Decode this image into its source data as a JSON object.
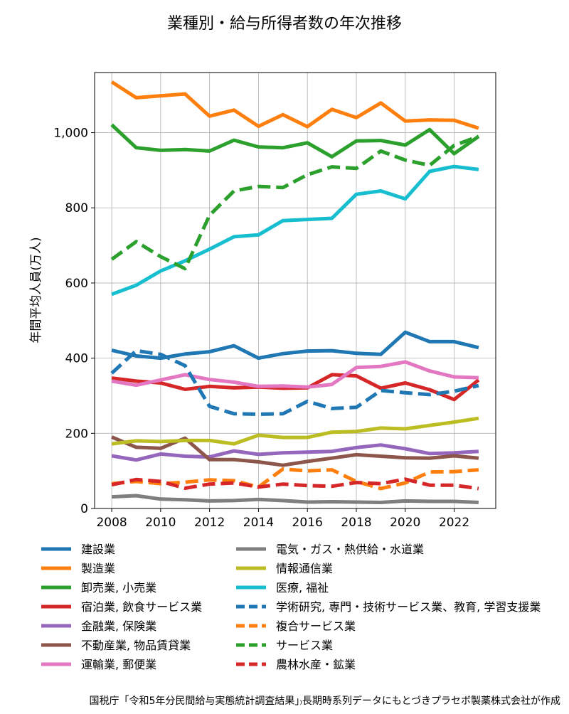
{
  "chart_data": {
    "type": "line",
    "title": "業種別・給与所得者数の年次推移",
    "xlabel": "",
    "ylabel": "年間平均人員(万人)",
    "xlim": [
      2007.3,
      2023.7
    ],
    "ylim": [
      0,
      1160
    ],
    "x_ticks": [
      2008,
      2010,
      2012,
      2014,
      2016,
      2018,
      2020,
      2022
    ],
    "x_tick_labels": [
      "2008",
      "2010",
      "2012",
      "2014",
      "2016",
      "2018",
      "2020",
      "2022"
    ],
    "y_ticks": [
      0,
      200,
      400,
      600,
      800,
      1000
    ],
    "y_tick_labels": [
      "0",
      "200",
      "400",
      "600",
      "800",
      "1,000"
    ],
    "grid": true,
    "legend_position": "bottom",
    "x": [
      2008,
      2009,
      2010,
      2011,
      2012,
      2013,
      2014,
      2015,
      2016,
      2017,
      2018,
      2019,
      2020,
      2021,
      2022,
      2023
    ],
    "series": [
      {
        "name": "建設業",
        "color": "#1f77b4",
        "style": "solid",
        "values": [
          421,
          406,
          400,
          411,
          417,
          433,
          400,
          412,
          419,
          420,
          413,
          410,
          469,
          444,
          444,
          428
        ]
      },
      {
        "name": "製造業",
        "color": "#ff7f0e",
        "style": "solid",
        "values": [
          1135,
          1093,
          1098,
          1103,
          1044,
          1060,
          1017,
          1048,
          1016,
          1062,
          1040,
          1079,
          1031,
          1034,
          1033,
          1012
        ]
      },
      {
        "name": "卸売業, 小売業",
        "color": "#2ca02c",
        "style": "solid",
        "values": [
          1021,
          960,
          953,
          955,
          951,
          980,
          962,
          960,
          973,
          936,
          978,
          979,
          967,
          1008,
          944,
          990
        ]
      },
      {
        "name": "宿泊業, 飲食サービス業",
        "color": "#d62728",
        "style": "solid",
        "values": [
          347,
          339,
          334,
          317,
          325,
          321,
          323,
          320,
          321,
          356,
          353,
          320,
          334,
          316,
          290,
          342
        ]
      },
      {
        "name": "金融業, 保険業",
        "color": "#9467bd",
        "style": "solid",
        "values": [
          140,
          129,
          145,
          139,
          137,
          153,
          144,
          148,
          150,
          152,
          162,
          169,
          159,
          146,
          148,
          152
        ]
      },
      {
        "name": "不動産業, 物品賃貸業",
        "color": "#8c564b",
        "style": "solid",
        "values": [
          190,
          163,
          160,
          187,
          130,
          130,
          124,
          115,
          125,
          134,
          143,
          139,
          135,
          134,
          140,
          134
        ]
      },
      {
        "name": "運輸業, 郵便業",
        "color": "#e377c2",
        "style": "solid",
        "values": [
          339,
          328,
          342,
          356,
          343,
          336,
          325,
          326,
          323,
          330,
          375,
          378,
          390,
          366,
          350,
          348
        ]
      },
      {
        "name": "電気・ガス・熱供給・水道業",
        "color": "#7f7f7f",
        "style": "solid",
        "values": [
          31,
          34,
          25,
          23,
          20,
          21,
          24,
          21,
          17,
          18,
          17,
          16,
          20,
          19,
          19,
          16
        ]
      },
      {
        "name": "情報通信業",
        "color": "#bcbd22",
        "style": "solid",
        "values": [
          172,
          180,
          178,
          181,
          181,
          172,
          195,
          189,
          189,
          203,
          205,
          214,
          212,
          221,
          230,
          240
        ]
      },
      {
        "name": "医療, 福祉",
        "color": "#17becf",
        "style": "solid",
        "values": [
          570,
          594,
          632,
          659,
          690,
          723,
          728,
          766,
          769,
          772,
          836,
          845,
          824,
          897,
          910,
          902
        ]
      },
      {
        "name": "学術研究, 専門・技術サービス業、教育, 学習支援業",
        "color": "#1f77b4",
        "style": "dashed",
        "values": [
          360,
          420,
          410,
          380,
          272,
          252,
          251,
          252,
          285,
          266,
          269,
          314,
          308,
          303,
          312,
          327
        ]
      },
      {
        "name": "複合サービス業",
        "color": "#ff7f0e",
        "style": "dashed",
        "values": [
          66,
          72,
          66,
          70,
          76,
          74,
          57,
          105,
          100,
          103,
          72,
          53,
          68,
          97,
          98,
          103
        ]
      },
      {
        "name": "サービス業",
        "color": "#2ca02c",
        "style": "dashed",
        "values": [
          663,
          710,
          670,
          638,
          780,
          845,
          857,
          854,
          888,
          909,
          905,
          951,
          927,
          913,
          966,
          990
        ]
      },
      {
        "name": "農林水産・鉱業",
        "color": "#d62728",
        "style": "dashed",
        "values": [
          63,
          77,
          72,
          54,
          65,
          68,
          57,
          65,
          61,
          59,
          69,
          66,
          78,
          62,
          62,
          53
        ]
      }
    ]
  },
  "source_note": "国税庁「令和5年分民間給与実態統計調査結果」₎長期時系列データにもとづきプラセボ製薬株式会社が作成"
}
